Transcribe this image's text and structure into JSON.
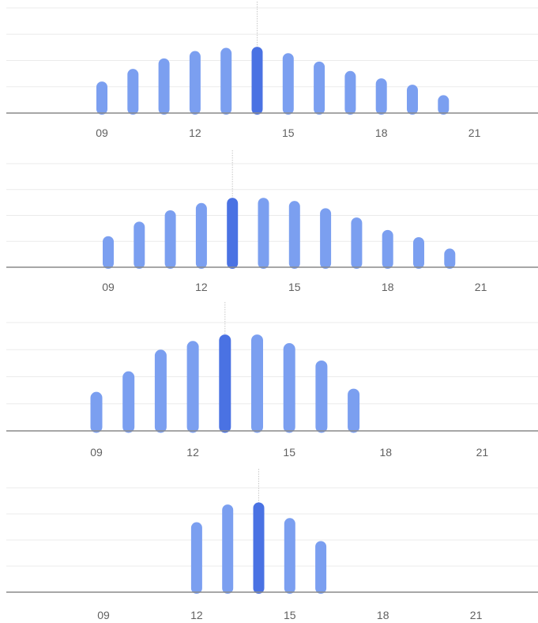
{
  "colors": {
    "bar": "#7b9ff0",
    "bar_highlight": "#4a72e3",
    "grid": "#ebebeb",
    "baseline": "#8a8a8a",
    "tick_text": "#606060"
  },
  "chart_data": [
    {
      "type": "bar",
      "x_ticks": [
        "09",
        "12",
        "15",
        "18",
        "21"
      ],
      "hours": [
        9,
        10,
        11,
        12,
        13,
        14,
        15,
        16,
        17,
        18,
        19,
        20
      ],
      "values": [
        30,
        42,
        52,
        59,
        62,
        63,
        57,
        49,
        40,
        33,
        27,
        17
      ],
      "highlight_hour": 14,
      "xlim": [
        6,
        22.5
      ],
      "ylim": [
        0,
        100
      ]
    },
    {
      "type": "bar",
      "x_ticks": [
        "09",
        "12",
        "15",
        "18",
        "21"
      ],
      "hours": [
        9,
        10,
        11,
        12,
        13,
        14,
        15,
        16,
        17,
        18,
        19,
        20
      ],
      "values": [
        30,
        44,
        55,
        62,
        67,
        67,
        64,
        57,
        48,
        36,
        29,
        18
      ],
      "highlight_hour": 13,
      "xlim": [
        6,
        22.5
      ],
      "ylim": [
        0,
        100
      ]
    },
    {
      "type": "bar",
      "x_ticks": [
        "09",
        "12",
        "15",
        "18",
        "21"
      ],
      "hours": [
        9,
        10,
        11,
        12,
        13,
        14,
        15,
        16,
        17
      ],
      "values": [
        36,
        55,
        75,
        83,
        89,
        89,
        81,
        65,
        39
      ],
      "highlight_hour": 13,
      "xlim": [
        6,
        22.5
      ],
      "ylim": [
        0,
        100
      ]
    },
    {
      "type": "bar",
      "x_ticks": [
        "09",
        "12",
        "15",
        "18",
        "21"
      ],
      "hours": [
        12,
        13,
        14,
        15,
        16
      ],
      "values": [
        67,
        84,
        86,
        71,
        49
      ],
      "highlight_hour": 14,
      "xlim": [
        6,
        22.5
      ],
      "ylim": [
        0,
        100
      ]
    }
  ]
}
